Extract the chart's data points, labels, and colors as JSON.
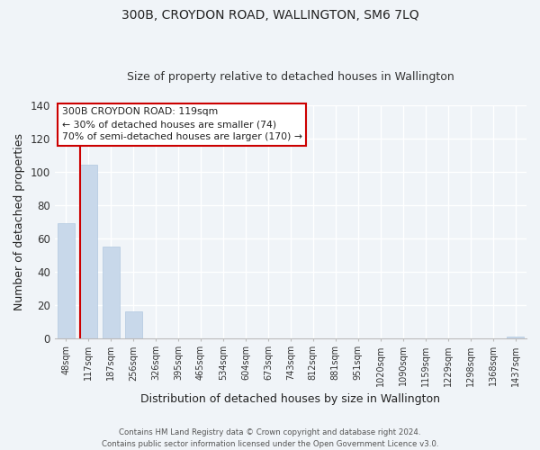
{
  "title": "300B, CROYDON ROAD, WALLINGTON, SM6 7LQ",
  "subtitle": "Size of property relative to detached houses in Wallington",
  "xlabel": "Distribution of detached houses by size in Wallington",
  "ylabel": "Number of detached properties",
  "bar_color": "#c8d8ea",
  "bar_edge_color": "#b0c8e0",
  "categories": [
    "48sqm",
    "117sqm",
    "187sqm",
    "256sqm",
    "326sqm",
    "395sqm",
    "465sqm",
    "534sqm",
    "604sqm",
    "673sqm",
    "743sqm",
    "812sqm",
    "881sqm",
    "951sqm",
    "1020sqm",
    "1090sqm",
    "1159sqm",
    "1229sqm",
    "1298sqm",
    "1368sqm",
    "1437sqm"
  ],
  "values": [
    69,
    104,
    55,
    16,
    0,
    0,
    0,
    0,
    0,
    0,
    0,
    0,
    0,
    0,
    0,
    0,
    0,
    0,
    0,
    0,
    1
  ],
  "ylim": [
    0,
    140
  ],
  "yticks": [
    0,
    20,
    40,
    60,
    80,
    100,
    120,
    140
  ],
  "property_line_color": "#cc0000",
  "ann_line1": "300B CROYDON ROAD: 119sqm",
  "ann_line2": "← 30% of detached houses are smaller (74)",
  "ann_line3": "70% of semi-detached houses are larger (170) →",
  "footer_line1": "Contains HM Land Registry data © Crown copyright and database right 2024.",
  "footer_line2": "Contains public sector information licensed under the Open Government Licence v3.0.",
  "background_color": "#f0f4f8",
  "grid_color": "#ffffff",
  "fig_width": 6.0,
  "fig_height": 5.0
}
